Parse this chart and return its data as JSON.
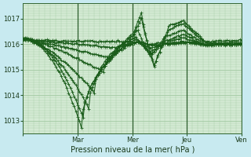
{
  "xlabel": "Pression niveau de la mer( hPa )",
  "background_color": "#c8eaf0",
  "plot_bg_color": "#d4ead4",
  "grid_color": "#a0c8a0",
  "line_color": "#1a5c1a",
  "marker_color": "#1a5c1a",
  "ylim": [
    1012.5,
    1017.6
  ],
  "xlim": [
    0,
    120
  ],
  "yticks": [
    1013,
    1014,
    1015,
    1016,
    1017
  ],
  "xtick_positions": [
    0,
    30,
    60,
    90,
    120
  ],
  "xtick_labels": [
    "",
    "Mar",
    "Mer",
    "Jeu",
    "Ven"
  ],
  "day_lines": [
    30,
    60,
    90,
    120
  ]
}
